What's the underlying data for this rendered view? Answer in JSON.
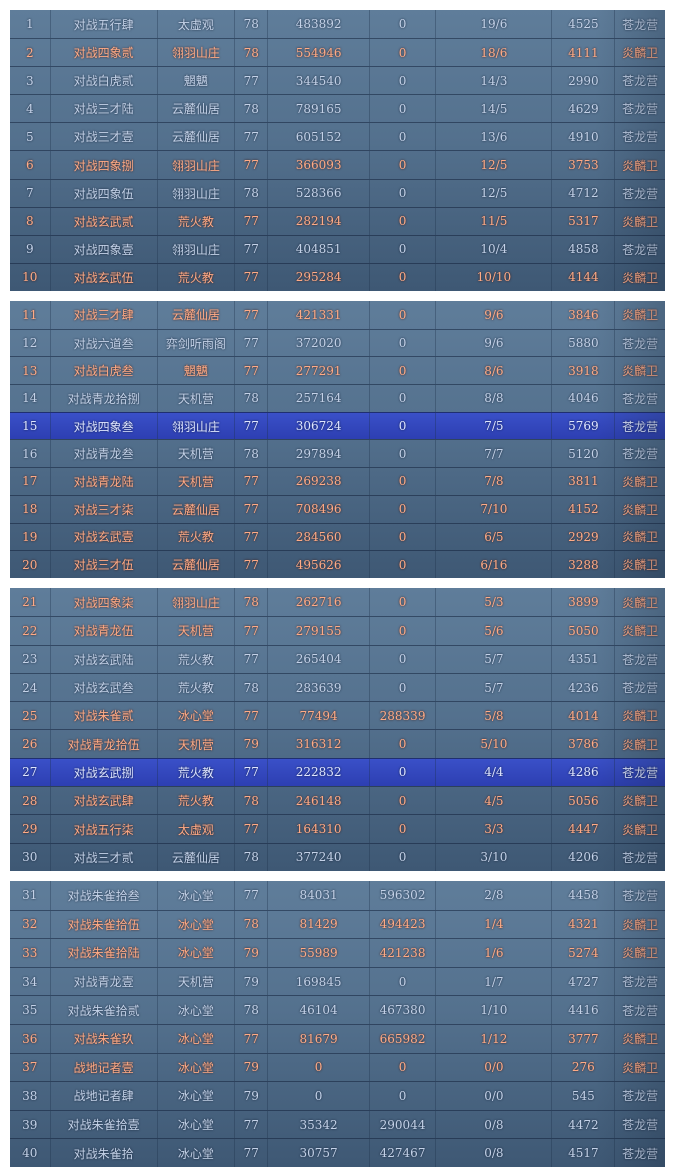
{
  "panels": [
    {
      "rows": [
        {
          "rank": "1",
          "name": "对战五行肆",
          "guild": "太虚观",
          "level": "78",
          "score": "483892",
          "extra": "0",
          "ratio": "19/6",
          "points": "4525",
          "camp": "苍龙营",
          "side": "a"
        },
        {
          "rank": "2",
          "name": "对战四象贰",
          "guild": "翎羽山庄",
          "level": "78",
          "score": "554946",
          "extra": "0",
          "ratio": "18/6",
          "points": "4111",
          "camp": "炎麟卫",
          "side": "b"
        },
        {
          "rank": "3",
          "name": "对战白虎贰",
          "guild": "魍魉",
          "level": "77",
          "score": "344540",
          "extra": "0",
          "ratio": "14/3",
          "points": "2990",
          "camp": "苍龙营",
          "side": "a"
        },
        {
          "rank": "4",
          "name": "对战三才陆",
          "guild": "云麓仙居",
          "level": "78",
          "score": "789165",
          "extra": "0",
          "ratio": "14/5",
          "points": "4629",
          "camp": "苍龙营",
          "side": "a"
        },
        {
          "rank": "5",
          "name": "对战三才壹",
          "guild": "云麓仙居",
          "level": "77",
          "score": "605152",
          "extra": "0",
          "ratio": "13/6",
          "points": "4910",
          "camp": "苍龙营",
          "side": "a"
        },
        {
          "rank": "6",
          "name": "对战四象捌",
          "guild": "翎羽山庄",
          "level": "77",
          "score": "366093",
          "extra": "0",
          "ratio": "12/5",
          "points": "3753",
          "camp": "炎麟卫",
          "side": "b"
        },
        {
          "rank": "7",
          "name": "对战四象伍",
          "guild": "翎羽山庄",
          "level": "78",
          "score": "528366",
          "extra": "0",
          "ratio": "12/5",
          "points": "4712",
          "camp": "苍龙营",
          "side": "a"
        },
        {
          "rank": "8",
          "name": "对战玄武贰",
          "guild": "荒火教",
          "level": "77",
          "score": "282194",
          "extra": "0",
          "ratio": "11/5",
          "points": "5317",
          "camp": "炎麟卫",
          "side": "b"
        },
        {
          "rank": "9",
          "name": "对战四象壹",
          "guild": "翎羽山庄",
          "level": "77",
          "score": "404851",
          "extra": "0",
          "ratio": "10/4",
          "points": "4858",
          "camp": "苍龙营",
          "side": "a"
        },
        {
          "rank": "10",
          "name": "对战玄武伍",
          "guild": "荒火教",
          "level": "77",
          "score": "295284",
          "extra": "0",
          "ratio": "10/10",
          "points": "4144",
          "camp": "炎麟卫",
          "side": "b"
        }
      ]
    },
    {
      "rows": [
        {
          "rank": "11",
          "name": "对战三才肆",
          "guild": "云麓仙居",
          "level": "77",
          "score": "421331",
          "extra": "0",
          "ratio": "9/6",
          "points": "3846",
          "camp": "炎麟卫",
          "side": "b"
        },
        {
          "rank": "12",
          "name": "对战六道叁",
          "guild": "弈剑听雨阁",
          "level": "77",
          "score": "372020",
          "extra": "0",
          "ratio": "9/6",
          "points": "5880",
          "camp": "苍龙营",
          "side": "a"
        },
        {
          "rank": "13",
          "name": "对战白虎叁",
          "guild": "魍魉",
          "level": "77",
          "score": "277291",
          "extra": "0",
          "ratio": "8/6",
          "points": "3918",
          "camp": "炎麟卫",
          "side": "b"
        },
        {
          "rank": "14",
          "name": "对战青龙拾捌",
          "guild": "天机营",
          "level": "78",
          "score": "257164",
          "extra": "0",
          "ratio": "8/8",
          "points": "4046",
          "camp": "苍龙营",
          "side": "a"
        },
        {
          "rank": "15",
          "name": "对战四象叁",
          "guild": "翎羽山庄",
          "level": "77",
          "score": "306724",
          "extra": "0",
          "ratio": "7/5",
          "points": "5769",
          "camp": "苍龙营",
          "side": "a",
          "highlight": true
        },
        {
          "rank": "16",
          "name": "对战青龙叁",
          "guild": "天机营",
          "level": "78",
          "score": "297894",
          "extra": "0",
          "ratio": "7/7",
          "points": "5120",
          "camp": "苍龙营",
          "side": "a"
        },
        {
          "rank": "17",
          "name": "对战青龙陆",
          "guild": "天机营",
          "level": "77",
          "score": "269238",
          "extra": "0",
          "ratio": "7/8",
          "points": "3811",
          "camp": "炎麟卫",
          "side": "b"
        },
        {
          "rank": "18",
          "name": "对战三才柒",
          "guild": "云麓仙居",
          "level": "77",
          "score": "708496",
          "extra": "0",
          "ratio": "7/10",
          "points": "4152",
          "camp": "炎麟卫",
          "side": "b"
        },
        {
          "rank": "19",
          "name": "对战玄武壹",
          "guild": "荒火教",
          "level": "77",
          "score": "284560",
          "extra": "0",
          "ratio": "6/5",
          "points": "2929",
          "camp": "炎麟卫",
          "side": "b"
        },
        {
          "rank": "20",
          "name": "对战三才伍",
          "guild": "云麓仙居",
          "level": "77",
          "score": "495626",
          "extra": "0",
          "ratio": "6/16",
          "points": "3288",
          "camp": "炎麟卫",
          "side": "b"
        }
      ]
    },
    {
      "rows": [
        {
          "rank": "21",
          "name": "对战四象柒",
          "guild": "翎羽山庄",
          "level": "78",
          "score": "262716",
          "extra": "0",
          "ratio": "5/3",
          "points": "3899",
          "camp": "炎麟卫",
          "side": "b"
        },
        {
          "rank": "22",
          "name": "对战青龙伍",
          "guild": "天机营",
          "level": "77",
          "score": "279155",
          "extra": "0",
          "ratio": "5/6",
          "points": "5050",
          "camp": "炎麟卫",
          "side": "b"
        },
        {
          "rank": "23",
          "name": "对战玄武陆",
          "guild": "荒火教",
          "level": "77",
          "score": "265404",
          "extra": "0",
          "ratio": "5/7",
          "points": "4351",
          "camp": "苍龙营",
          "side": "a"
        },
        {
          "rank": "24",
          "name": "对战玄武叁",
          "guild": "荒火教",
          "level": "78",
          "score": "283639",
          "extra": "0",
          "ratio": "5/7",
          "points": "4236",
          "camp": "苍龙营",
          "side": "a"
        },
        {
          "rank": "25",
          "name": "对战朱雀贰",
          "guild": "冰心堂",
          "level": "77",
          "score": "77494",
          "extra": "288339",
          "ratio": "5/8",
          "points": "4014",
          "camp": "炎麟卫",
          "side": "b"
        },
        {
          "rank": "26",
          "name": "对战青龙拾伍",
          "guild": "天机营",
          "level": "79",
          "score": "316312",
          "extra": "0",
          "ratio": "5/10",
          "points": "3786",
          "camp": "炎麟卫",
          "side": "b"
        },
        {
          "rank": "27",
          "name": "对战玄武捌",
          "guild": "荒火教",
          "level": "77",
          "score": "222832",
          "extra": "0",
          "ratio": "4/4",
          "points": "4286",
          "camp": "苍龙营",
          "side": "a",
          "highlight": true
        },
        {
          "rank": "28",
          "name": "对战玄武肆",
          "guild": "荒火教",
          "level": "78",
          "score": "246148",
          "extra": "0",
          "ratio": "4/5",
          "points": "5056",
          "camp": "炎麟卫",
          "side": "b"
        },
        {
          "rank": "29",
          "name": "对战五行柒",
          "guild": "太虚观",
          "level": "77",
          "score": "164310",
          "extra": "0",
          "ratio": "3/3",
          "points": "4447",
          "camp": "炎麟卫",
          "side": "b"
        },
        {
          "rank": "30",
          "name": "对战三才贰",
          "guild": "云麓仙居",
          "level": "78",
          "score": "377240",
          "extra": "0",
          "ratio": "3/10",
          "points": "4206",
          "camp": "苍龙营",
          "side": "a"
        }
      ]
    },
    {
      "rows": [
        {
          "rank": "31",
          "name": "对战朱雀拾叁",
          "guild": "冰心堂",
          "level": "77",
          "score": "84031",
          "extra": "596302",
          "ratio": "2/8",
          "points": "4458",
          "camp": "苍龙营",
          "side": "a"
        },
        {
          "rank": "32",
          "name": "对战朱雀拾伍",
          "guild": "冰心堂",
          "level": "78",
          "score": "81429",
          "extra": "494423",
          "ratio": "1/4",
          "points": "4321",
          "camp": "炎麟卫",
          "side": "b"
        },
        {
          "rank": "33",
          "name": "对战朱雀拾陆",
          "guild": "冰心堂",
          "level": "79",
          "score": "55989",
          "extra": "421238",
          "ratio": "1/6",
          "points": "5274",
          "camp": "炎麟卫",
          "side": "b"
        },
        {
          "rank": "34",
          "name": "对战青龙壹",
          "guild": "天机营",
          "level": "79",
          "score": "169845",
          "extra": "0",
          "ratio": "1/7",
          "points": "4727",
          "camp": "苍龙营",
          "side": "a"
        },
        {
          "rank": "35",
          "name": "对战朱雀拾贰",
          "guild": "冰心堂",
          "level": "78",
          "score": "46104",
          "extra": "467380",
          "ratio": "1/10",
          "points": "4416",
          "camp": "苍龙营",
          "side": "a"
        },
        {
          "rank": "36",
          "name": "对战朱雀玖",
          "guild": "冰心堂",
          "level": "77",
          "score": "81679",
          "extra": "665982",
          "ratio": "1/12",
          "points": "3777",
          "camp": "炎麟卫",
          "side": "b"
        },
        {
          "rank": "37",
          "name": "战地记者壹",
          "guild": "冰心堂",
          "level": "79",
          "score": "0",
          "extra": "0",
          "ratio": "0/0",
          "points": "276",
          "camp": "炎麟卫",
          "side": "b"
        },
        {
          "rank": "38",
          "name": "战地记者肆",
          "guild": "冰心堂",
          "level": "79",
          "score": "0",
          "extra": "0",
          "ratio": "0/0",
          "points": "545",
          "camp": "苍龙营",
          "side": "a"
        },
        {
          "rank": "39",
          "name": "对战朱雀拾壹",
          "guild": "冰心堂",
          "level": "77",
          "score": "35342",
          "extra": "290044",
          "ratio": "0/8",
          "points": "4472",
          "camp": "苍龙营",
          "side": "a"
        },
        {
          "rank": "40",
          "name": "对战朱雀拾",
          "guild": "冰心堂",
          "level": "77",
          "score": "30757",
          "extra": "427467",
          "ratio": "0/8",
          "points": "4517",
          "camp": "苍龙营",
          "side": "a"
        }
      ]
    }
  ],
  "colors": {
    "camp_a_text": "#c4d2e8",
    "camp_b_text": "#ffab86",
    "highlight_row": "#3a50c8",
    "panel_bg": "#5f7d9a"
  }
}
